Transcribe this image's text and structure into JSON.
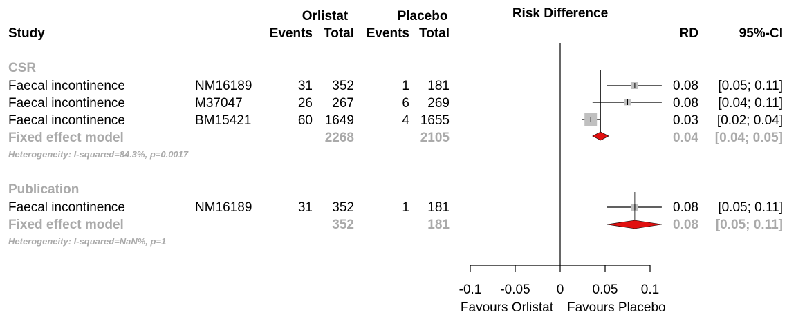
{
  "header": {
    "study": "Study",
    "group1": "Orlistat",
    "group2": "Placebo",
    "events": "Events",
    "total": "Total",
    "plot_title": "Risk Difference",
    "rd": "RD",
    "ci": "95%-CI"
  },
  "subgroups": [
    {
      "label": "CSR",
      "studies": [
        {
          "name": "Faecal incontinence",
          "id": "NM16189",
          "e1": "31",
          "n1": "352",
          "e2": "1",
          "n2": "181",
          "rd": "0.08",
          "ci": "[0.05; 0.11]"
        },
        {
          "name": "Faecal incontinence",
          "id": "M37047",
          "e1": "26",
          "n1": "267",
          "e2": "6",
          "n2": "269",
          "rd": "0.08",
          "ci": "[0.04; 0.11]"
        },
        {
          "name": "Faecal incontinence",
          "id": "BM15421",
          "e1": "60",
          "n1": "1649",
          "e2": "4",
          "n2": "1655",
          "rd": "0.03",
          "ci": "[0.02; 0.04]"
        }
      ],
      "fixed": {
        "label": "Fixed effect model",
        "n1": "2268",
        "n2": "2105",
        "rd": "0.04",
        "ci": "[0.04; 0.05]"
      },
      "heterogeneity": "Heterogeneity: I-squared=84.3%, p=0.0017"
    },
    {
      "label": "Publication",
      "studies": [
        {
          "name": "Faecal incontinence",
          "id": "NM16189",
          "e1": "31",
          "n1": "352",
          "e2": "1",
          "n2": "181",
          "rd": "0.08",
          "ci": "[0.05; 0.11]"
        }
      ],
      "fixed": {
        "label": "Fixed effect model",
        "n1": "352",
        "n2": "181",
        "rd": "0.08",
        "ci": "[0.05; 0.11]"
      },
      "heterogeneity": "Heterogeneity: I-squared=NaN%, p=1"
    }
  ],
  "axis": {
    "ticks": [
      "-0.1",
      "-0.05",
      "0",
      "0.05",
      "0.1"
    ],
    "favours_left": "Favours Orlistat",
    "favours_right": "Favours Placebo"
  },
  "chart_data": {
    "type": "forest",
    "title": "Risk Difference",
    "xlim": [
      -0.1,
      0.1
    ],
    "ticks": [
      -0.1,
      -0.05,
      0,
      0.05,
      0.1
    ],
    "reference_line": 0,
    "colors": {
      "diamond": "#e01010",
      "weight_box": "#c0c0c0",
      "line": "#000000",
      "summary_text": "#aaaaaa"
    },
    "series": [
      {
        "subgroup": "CSR",
        "label": "NM16189",
        "estimate": 0.083,
        "lower": 0.052,
        "upper": 0.113,
        "weight": 0.18
      },
      {
        "subgroup": "CSR",
        "label": "M37047",
        "estimate": 0.075,
        "lower": 0.036,
        "upper": 0.113,
        "weight": 0.12
      },
      {
        "subgroup": "CSR",
        "label": "BM15421",
        "estimate": 0.034,
        "lower": 0.024,
        "upper": 0.044,
        "weight": 1.0
      },
      {
        "subgroup": "CSR",
        "label": "Fixed effect model",
        "summary": true,
        "estimate": 0.045,
        "lower": 0.036,
        "upper": 0.054
      },
      {
        "subgroup": "Publication",
        "label": "NM16189",
        "estimate": 0.083,
        "lower": 0.052,
        "upper": 0.113,
        "weight": 0.18
      },
      {
        "subgroup": "Publication",
        "label": "Fixed effect model",
        "summary": true,
        "estimate": 0.083,
        "lower": 0.052,
        "upper": 0.113
      }
    ]
  }
}
